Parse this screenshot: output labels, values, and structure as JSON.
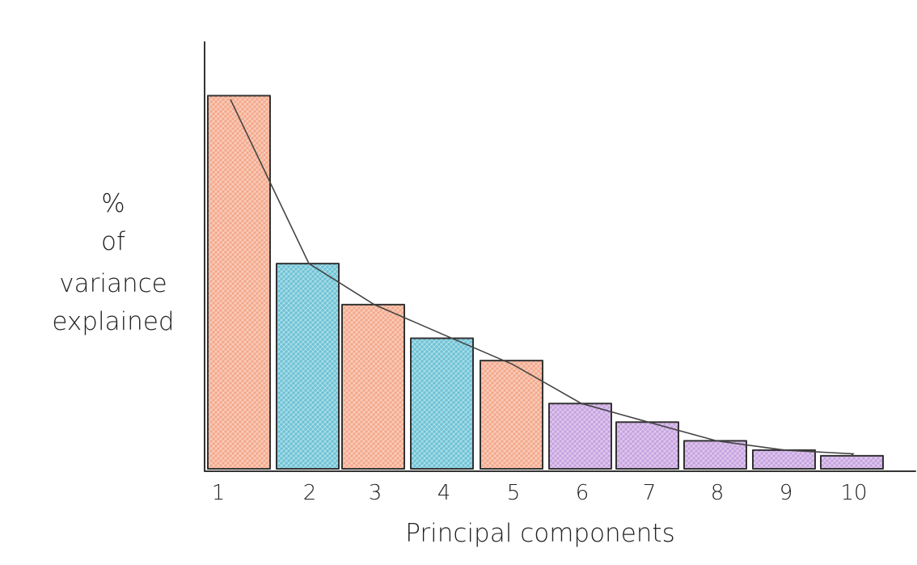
{
  "chart_data": {
    "type": "bar",
    "categories": [
      "1",
      "2",
      "3",
      "4",
      "5",
      "6",
      "7",
      "8",
      "9",
      "10"
    ],
    "values": [
      100,
      55,
      44,
      35,
      29,
      17.5,
      12.5,
      7.5,
      5,
      3.5
    ],
    "trend_values": [
      99,
      55,
      44,
      36,
      28,
      17.5,
      12.5,
      7.5,
      5,
      4
    ],
    "ylim": [
      0,
      112
    ],
    "xlabel": "Principal components",
    "ylabel_lines": [
      "%",
      "of",
      "variance",
      "explained"
    ],
    "grid": false,
    "bar_colors": [
      "#f4a98c",
      "#6ec3d6",
      "#f4a98c",
      "#6ec3d6",
      "#f4a98c",
      "#c7a3e0",
      "#c7a3e0",
      "#c7a3e0",
      "#c7a3e0",
      "#c7a3e0"
    ]
  }
}
